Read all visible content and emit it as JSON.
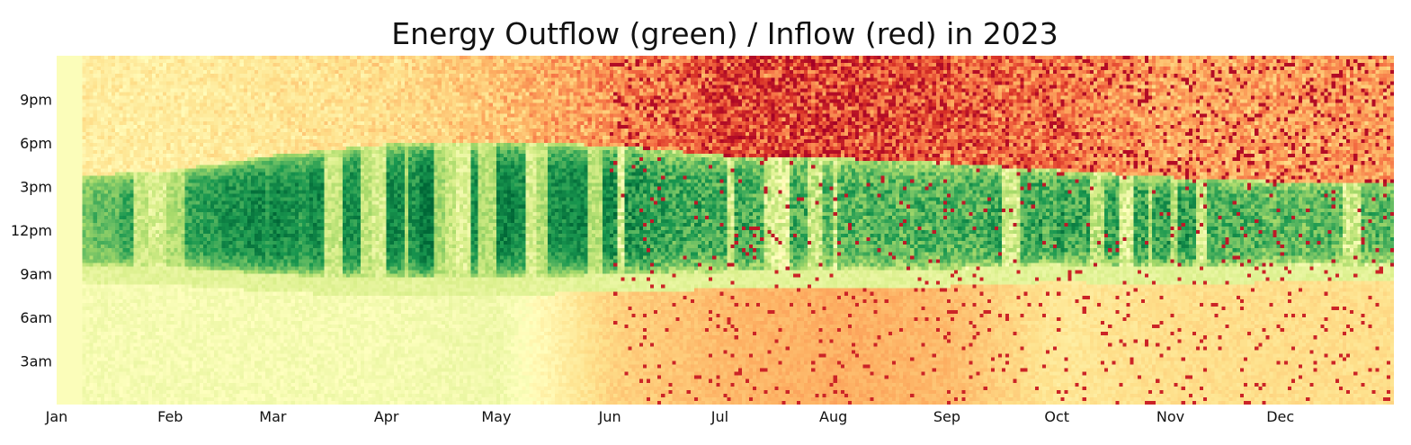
{
  "chart_data": {
    "type": "heatmap",
    "title": "Energy Outflow (green) / Inflow (red) in 2023",
    "year": 2023,
    "x_axis": {
      "label": "",
      "ticks": [
        "Jan",
        "Feb",
        "Mar",
        "Apr",
        "May",
        "Jun",
        "Jul",
        "Aug",
        "Sep",
        "Oct",
        "Nov",
        "Dec"
      ]
    },
    "y_axis": {
      "label": "",
      "ticks": [
        "3am",
        "6am",
        "9am",
        "12pm",
        "3pm",
        "6pm",
        "9pm"
      ],
      "range": [
        "12am",
        "12am"
      ]
    },
    "color_scale": {
      "name": "RdYlGn",
      "outflow_color": "#006837",
      "neutral_color": "#ffffbf",
      "inflow_color": "#a50026",
      "value_range": [
        -1,
        1
      ]
    },
    "grid": false,
    "legend": "none",
    "observed_patterns": {
      "night_baseline_by_month": [
        0.05,
        0.05,
        0.05,
        0.05,
        0.08,
        -0.25,
        -0.35,
        -0.4,
        -0.35,
        -0.15,
        -0.2,
        -0.2
      ],
      "daytime_outflow_peak_by_month": [
        0.55,
        0.85,
        0.9,
        0.95,
        0.95,
        0.85,
        0.75,
        0.7,
        0.7,
        0.8,
        0.85,
        0.65
      ],
      "daytime_window_start_hour_by_month": [
        9.5,
        9.3,
        8.8,
        8.5,
        8.6,
        8.8,
        9.0,
        9.1,
        9.2,
        9.5,
        9.3,
        9.5
      ],
      "daytime_window_end_hour_by_month": [
        15.5,
        16.0,
        17.0,
        17.8,
        17.9,
        17.7,
        17.0,
        16.8,
        16.5,
        16.0,
        15.5,
        15.2
      ],
      "evening_inflow_by_month": [
        -0.15,
        -0.15,
        -0.2,
        -0.25,
        -0.4,
        -0.6,
        -0.85,
        -0.9,
        -0.8,
        -0.7,
        -0.5,
        -0.55
      ],
      "data_start_day_of_year": 7
    }
  }
}
